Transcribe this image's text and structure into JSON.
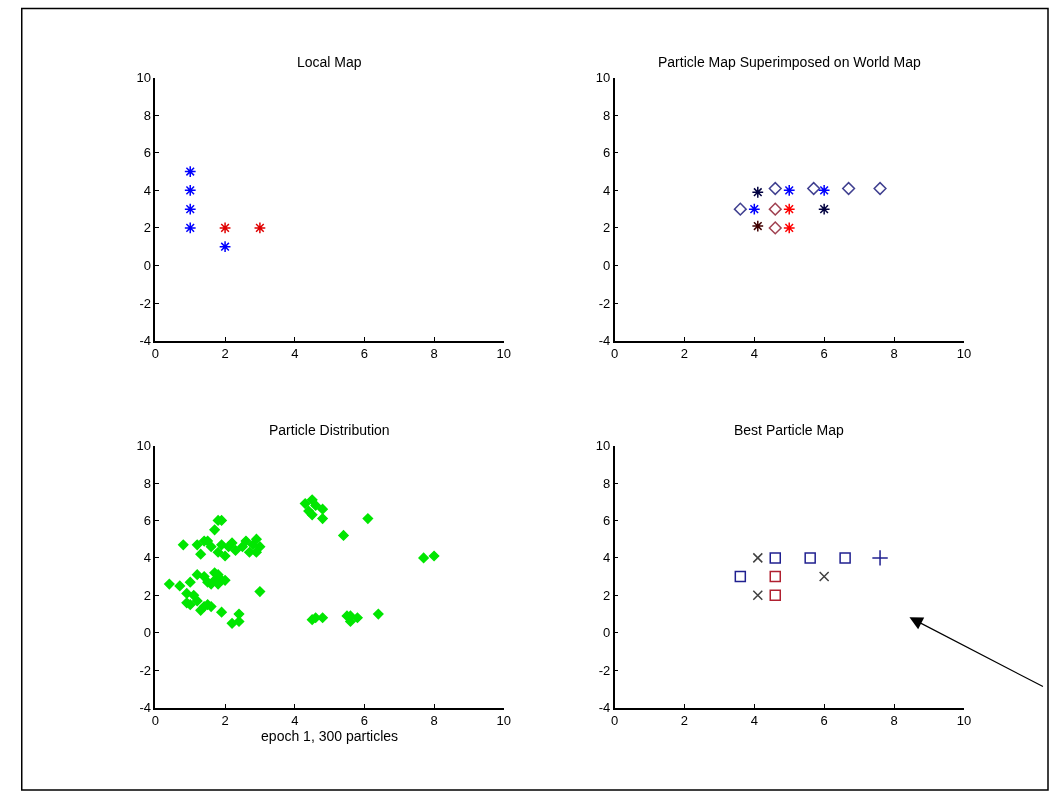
{
  "chart_data": [
    {
      "type": "scatter",
      "title": "Local Map",
      "xlim": [
        0,
        10
      ],
      "ylim": [
        -4,
        10
      ],
      "xticks": [
        0,
        2,
        4,
        6,
        8,
        10
      ],
      "yticks": [
        -4,
        -2,
        0,
        2,
        4,
        6,
        8,
        10
      ],
      "series": [
        {
          "color": "#0000ff",
          "marker": "cross",
          "x": [
            1,
            1,
            1,
            1,
            2
          ],
          "values": [
            2,
            3,
            4,
            5,
            1
          ]
        },
        {
          "color": "#e00000",
          "marker": "cross",
          "x": [
            2,
            3
          ],
          "values": [
            2,
            2
          ]
        }
      ]
    },
    {
      "type": "scatter",
      "title": "Particle Map Superimposed on World Map",
      "xlim": [
        0,
        10
      ],
      "ylim": [
        -4,
        10
      ],
      "xticks": [
        0,
        2,
        4,
        6,
        8,
        10
      ],
      "yticks": [
        -4,
        -2,
        0,
        2,
        4,
        6,
        8,
        10
      ],
      "series": [
        {
          "color": "#404090",
          "marker": "diamond-open",
          "x": [
            3.6,
            4.6,
            5.7,
            6.7,
            7.6
          ],
          "values": [
            3,
            4.1,
            4.1,
            4.1,
            4.1
          ]
        },
        {
          "color": "#a04050",
          "marker": "diamond-open",
          "x": [
            4.6,
            4.6
          ],
          "values": [
            3,
            2
          ]
        },
        {
          "color": "#000040",
          "marker": "cross",
          "x": [
            4.1,
            6
          ],
          "values": [
            3.9,
            3
          ]
        },
        {
          "color": "#400000",
          "marker": "cross",
          "x": [
            4.1
          ],
          "values": [
            2.1
          ]
        },
        {
          "color": "#0000ff",
          "marker": "cross",
          "x": [
            4,
            5,
            6
          ],
          "values": [
            3,
            4,
            4
          ]
        },
        {
          "color": "#ff0000",
          "marker": "cross",
          "x": [
            5,
            5
          ],
          "values": [
            3,
            2
          ]
        }
      ]
    },
    {
      "type": "scatter",
      "title": "Particle Distribution",
      "xlabel": "epoch 1, 300 particles",
      "xlim": [
        0,
        10
      ],
      "ylim": [
        -4,
        10
      ],
      "xticks": [
        0,
        2,
        4,
        6,
        8,
        10
      ],
      "yticks": [
        -4,
        -2,
        0,
        2,
        4,
        6,
        8,
        10
      ],
      "series": [
        {
          "color": "#00e600",
          "marker": "diamond",
          "x": [
            0.4,
            0.8,
            0.7,
            0.9,
            1.0,
            1.2,
            1.7,
            1.4,
            1.5,
            1.7,
            1.8,
            1.9,
            2.0,
            1.6,
            1.8,
            0.9,
            1.0,
            1.2,
            1.3,
            1.4,
            1.5,
            1.6,
            1.1,
            1.9,
            2.2,
            2.4,
            2.4,
            3.0,
            1.2,
            1.4,
            1.3,
            1.5,
            1.6,
            1.8,
            1.9,
            2.0,
            2.1,
            2.2,
            2.3,
            2.5,
            2.6,
            2.7,
            2.8,
            2.9,
            3.0,
            2.9,
            1.8,
            1.9,
            1.7,
            4.3,
            4.5,
            4.6,
            4.8,
            4.4,
            4.5,
            4.8,
            5.4,
            6.1,
            4.5,
            4.6,
            4.8,
            5.5,
            5.6,
            5.8,
            5.6,
            6.4,
            7.7,
            8.0
          ],
          "values": [
            2.6,
            4.7,
            2.5,
            2.1,
            2.7,
            3.1,
            2.8,
            3.0,
            2.7,
            3.2,
            3.1,
            2.8,
            2.8,
            2.6,
            2.6,
            1.6,
            1.5,
            1.7,
            1.2,
            1.4,
            1.5,
            1.4,
            2.0,
            1.1,
            0.5,
            0.6,
            1.0,
            2.2,
            4.7,
            4.9,
            4.2,
            4.9,
            4.6,
            4.3,
            4.7,
            4.1,
            4.6,
            4.8,
            4.4,
            4.6,
            4.9,
            4.3,
            4.7,
            5.0,
            4.6,
            4.3,
            6.0,
            6.0,
            5.5,
            6.9,
            7.1,
            6.8,
            6.6,
            6.5,
            6.3,
            6.1,
            5.2,
            6.1,
            0.7,
            0.8,
            0.8,
            0.9,
            0.6,
            0.8,
            0.9,
            1.0,
            4.0,
            4.1
          ]
        }
      ]
    },
    {
      "type": "scatter",
      "title": "Best Particle Map",
      "xlim": [
        0,
        10
      ],
      "ylim": [
        -4,
        10
      ],
      "xticks": [
        0,
        2,
        4,
        6,
        8,
        10
      ],
      "yticks": [
        -4,
        -2,
        0,
        2,
        4,
        6,
        8,
        10
      ],
      "series": [
        {
          "color": "#404040",
          "marker": "x",
          "x": [
            4.1,
            4.1,
            6
          ],
          "values": [
            4,
            2,
            3
          ]
        },
        {
          "color": "#202090",
          "marker": "square",
          "x": [
            3.6,
            4.6,
            5.6,
            6.6
          ],
          "values": [
            3,
            4,
            4,
            4
          ]
        },
        {
          "color": "#b02030",
          "marker": "square",
          "x": [
            4.6,
            4.6
          ],
          "values": [
            3,
            2
          ]
        },
        {
          "color": "#202090",
          "marker": "plus",
          "x": [
            7.6
          ],
          "values": [
            4
          ]
        }
      ]
    }
  ]
}
